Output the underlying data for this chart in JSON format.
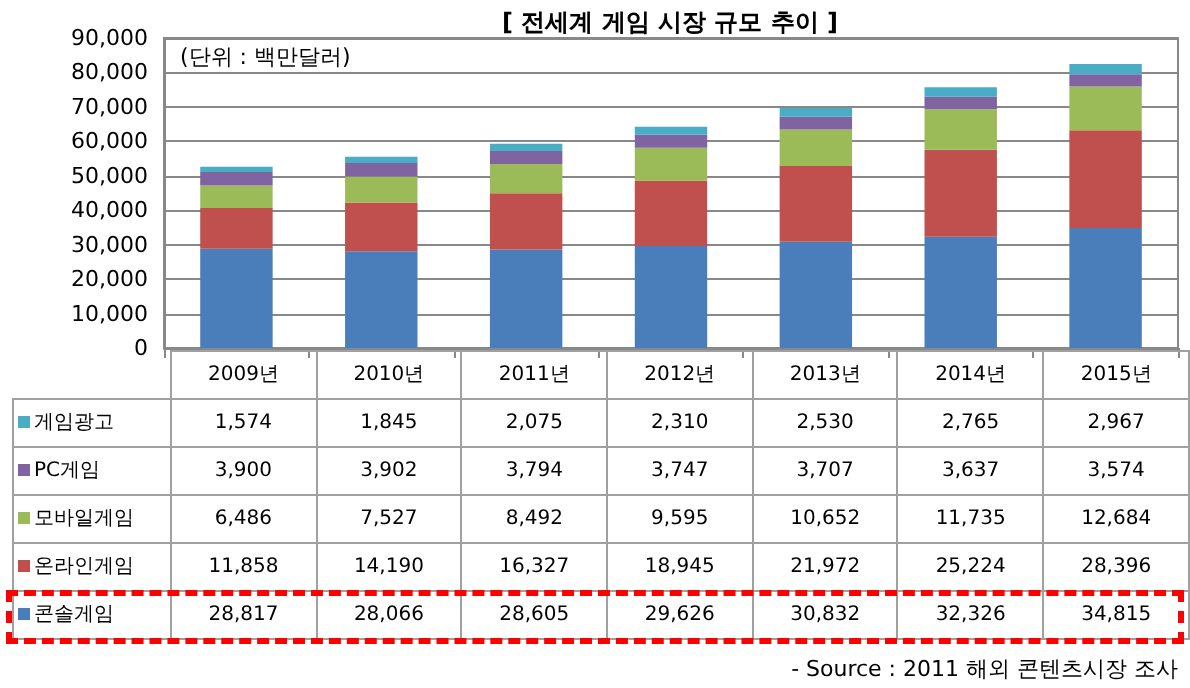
{
  "chart_data": {
    "type": "bar",
    "title": "[ 전세계 게임 시장 규모 추이 ]",
    "categories": [
      "2009년",
      "2010년",
      "2011년",
      "2012년",
      "2013년",
      "2014년",
      "2015년"
    ],
    "stacked": true,
    "series": [
      {
        "name": "콘솔게임",
        "color": "#4a7ebb",
        "values": [
          28817,
          28066,
          28605,
          29626,
          30832,
          32326,
          34815
        ],
        "value_labels": [
          "28,817",
          "28,066",
          "28,605",
          "29,626",
          "30,832",
          "32,326",
          "34,815"
        ]
      },
      {
        "name": "온라인게임",
        "color": "#c0504d",
        "values": [
          11858,
          14190,
          16327,
          18945,
          21972,
          25224,
          28396
        ],
        "value_labels": [
          "11,858",
          "14,190",
          "16,327",
          "18,945",
          "21,972",
          "25,224",
          "28,396"
        ]
      },
      {
        "name": "모바일게임",
        "color": "#9bbb59",
        "values": [
          6486,
          7527,
          8492,
          9595,
          10652,
          11735,
          12684
        ],
        "value_labels": [
          "6,486",
          "7,527",
          "8,492",
          "9,595",
          "10,652",
          "11,735",
          "12,684"
        ]
      },
      {
        "name": "PC게임",
        "color": "#8064a2",
        "values": [
          3900,
          3902,
          3794,
          3747,
          3707,
          3637,
          3574
        ],
        "value_labels": [
          "3,900",
          "3,902",
          "3,794",
          "3,747",
          "3,707",
          "3,637",
          "3,574"
        ]
      },
      {
        "name": "게임광고",
        "color": "#4bacc6",
        "values": [
          1574,
          1845,
          2075,
          2310,
          2530,
          2765,
          2967
        ],
        "value_labels": [
          "1,574",
          "1,845",
          "2,075",
          "2,310",
          "2,530",
          "2,765",
          "2,967"
        ]
      }
    ],
    "ylim": [
      0,
      90000
    ],
    "yticks": [
      {
        "value": 0,
        "label": "0"
      },
      {
        "value": 10000,
        "label": "10,000"
      },
      {
        "value": 20000,
        "label": "20,000"
      },
      {
        "value": 30000,
        "label": "30,000"
      },
      {
        "value": 40000,
        "label": "40,000"
      },
      {
        "value": 50000,
        "label": "50,000"
      },
      {
        "value": 60000,
        "label": "60,000"
      },
      {
        "value": 70000,
        "label": "70,000"
      },
      {
        "value": 80000,
        "label": "80,000"
      },
      {
        "value": 90000,
        "label": "90,000"
      }
    ],
    "grid": "y",
    "legend": "bottom",
    "annotations": [
      "(단위 : 백만달러)",
      "- Source : 2011 해외 콘텐츠시장 조사"
    ]
  }
}
